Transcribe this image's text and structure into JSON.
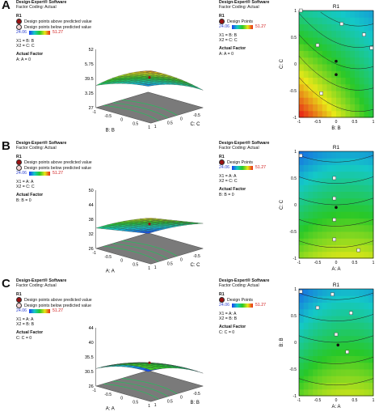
{
  "legend": {
    "software": "Design-Expert® Software",
    "coding": "Factor Coding: Actual",
    "response": "R1",
    "above": "Design points above predicted value",
    "below": "Design points below predicted value",
    "design_points": "Design Points",
    "range_low": "24.06",
    "range_high": "51.27",
    "actual_factor": "Actual Factor"
  },
  "colors": {
    "above": "#9b1010",
    "below": "#f4d6d6",
    "low": "#1a3ff0",
    "high": "#e82818"
  },
  "panels": [
    {
      "label": "A",
      "x1": "X1 = B: B",
      "x2": "X2 = C: C",
      "fixed": "A: A = 0",
      "surface": {
        "zticks": [
          "52",
          "45.75",
          "39.5",
          "33.25",
          "27"
        ],
        "zlabel": "R1",
        "xlabel": "B: B",
        "ylabel": "C: C",
        "xticks": [
          "-1",
          "-0.5",
          "0",
          "0.5",
          "1"
        ],
        "yticks": [
          "-1",
          "-0.5",
          "0",
          "0.5",
          "1"
        ]
      },
      "contour": {
        "title": "R1",
        "xlabel": "B: B",
        "ylabel": "C: C",
        "xticks": [
          "-1",
          "-0.5",
          "0",
          "0.5",
          "1"
        ],
        "yticks": [
          "-1",
          "-0.5",
          "0",
          "0.5",
          "1"
        ]
      }
    },
    {
      "label": "B",
      "x1": "X1 = A: A",
      "x2": "X2 = C: C",
      "fixed": "B: B = 0",
      "surface": {
        "zticks": [
          "50",
          "44",
          "38",
          "32",
          "26"
        ],
        "zlabel": "R1",
        "xlabel": "A: A",
        "ylabel": "C: C",
        "xticks": [
          "-1",
          "-0.5",
          "0",
          "0.5",
          "1"
        ],
        "yticks": [
          "-1",
          "-0.5",
          "0",
          "0.5",
          "1"
        ]
      },
      "contour": {
        "title": "R1",
        "xlabel": "A: A",
        "ylabel": "C: C",
        "xticks": [
          "-1",
          "-0.5",
          "0",
          "0.5",
          "1"
        ],
        "yticks": [
          "-1",
          "-0.5",
          "0",
          "0.5",
          "1"
        ]
      }
    },
    {
      "label": "C",
      "x1": "X1 = A: A",
      "x2": "X2 = B: B",
      "fixed": "C: C = 0",
      "surface": {
        "zticks": [
          "44",
          "40",
          "35.5",
          "30.5",
          "26"
        ],
        "zlabel": "R1",
        "xlabel": "A: A",
        "ylabel": "B: B",
        "xticks": [
          "-1",
          "-0.5",
          "0",
          "0.5",
          "1"
        ],
        "yticks": [
          "-1",
          "-0.5",
          "0",
          "0.5",
          "1"
        ]
      },
      "contour": {
        "title": "R1",
        "xlabel": "A: A",
        "ylabel": "B: B",
        "xticks": [
          "-1",
          "-0.5",
          "0",
          "0.5",
          "1"
        ],
        "yticks": [
          "-1",
          "-0.5",
          "0",
          "0.5",
          "1"
        ]
      }
    }
  ],
  "chart_data": [
    {
      "type": "surface",
      "title": "",
      "zlabel": "R1",
      "xlabel": "B: B",
      "ylabel": "C: C",
      "zrange": [
        27,
        52
      ],
      "xrange": [
        -1,
        1
      ],
      "yrange": [
        -1,
        1
      ],
      "actual_factor": "A: A = 0"
    },
    {
      "type": "contour",
      "title": "R1",
      "xlabel": "B: B",
      "ylabel": "C: C",
      "xrange": [
        -1,
        1
      ],
      "yrange": [
        -1,
        1
      ],
      "design_points": [
        {
          "x": -0.5,
          "y": 0.35
        },
        {
          "x": 0.15,
          "y": 0.75
        },
        {
          "x": 0.75,
          "y": 0.55
        },
        {
          "x": 0.95,
          "y": 0.3
        },
        {
          "x": -0.95,
          "y": 1.0
        },
        {
          "x": 0.0,
          "y": 0.05,
          "type": "center"
        },
        {
          "x": 0.0,
          "y": -0.2,
          "type": "center"
        },
        {
          "x": -0.4,
          "y": -0.55
        }
      ]
    },
    {
      "type": "surface",
      "title": "",
      "zlabel": "R1",
      "xlabel": "A: A",
      "ylabel": "C: C",
      "zrange": [
        26,
        50
      ],
      "xrange": [
        -1,
        1
      ],
      "yrange": [
        -1,
        1
      ],
      "actual_factor": "B: B = 0"
    },
    {
      "type": "contour",
      "title": "R1",
      "xlabel": "A: A",
      "ylabel": "C: C",
      "xrange": [
        -1,
        1
      ],
      "yrange": [
        -1,
        1
      ],
      "design_points": [
        {
          "x": -0.95,
          "y": 0.92
        },
        {
          "x": -0.05,
          "y": 0.5
        },
        {
          "x": -0.05,
          "y": 0.12
        },
        {
          "x": 0.0,
          "y": -0.05,
          "type": "center"
        },
        {
          "x": -0.05,
          "y": -0.28
        },
        {
          "x": -0.05,
          "y": -0.65
        },
        {
          "x": 0.6,
          "y": -0.85
        }
      ]
    },
    {
      "type": "surface",
      "title": "",
      "zlabel": "R1",
      "xlabel": "A: A",
      "ylabel": "B: B",
      "zrange": [
        26,
        44
      ],
      "xrange": [
        -1,
        1
      ],
      "yrange": [
        -1,
        1
      ],
      "actual_factor": "C: C = 0"
    },
    {
      "type": "contour",
      "title": "R1",
      "xlabel": "A: A",
      "ylabel": "B: B",
      "xrange": [
        -1,
        1
      ],
      "yrange": [
        -1,
        1
      ],
      "design_points": [
        {
          "x": -0.95,
          "y": 0.95
        },
        {
          "x": -0.1,
          "y": 0.9
        },
        {
          "x": -0.5,
          "y": 0.65
        },
        {
          "x": 0.4,
          "y": 0.55
        },
        {
          "x": 0.0,
          "y": 0.15
        },
        {
          "x": 0.05,
          "y": -0.05,
          "type": "center"
        },
        {
          "x": 0.3,
          "y": -0.18
        }
      ]
    }
  ]
}
